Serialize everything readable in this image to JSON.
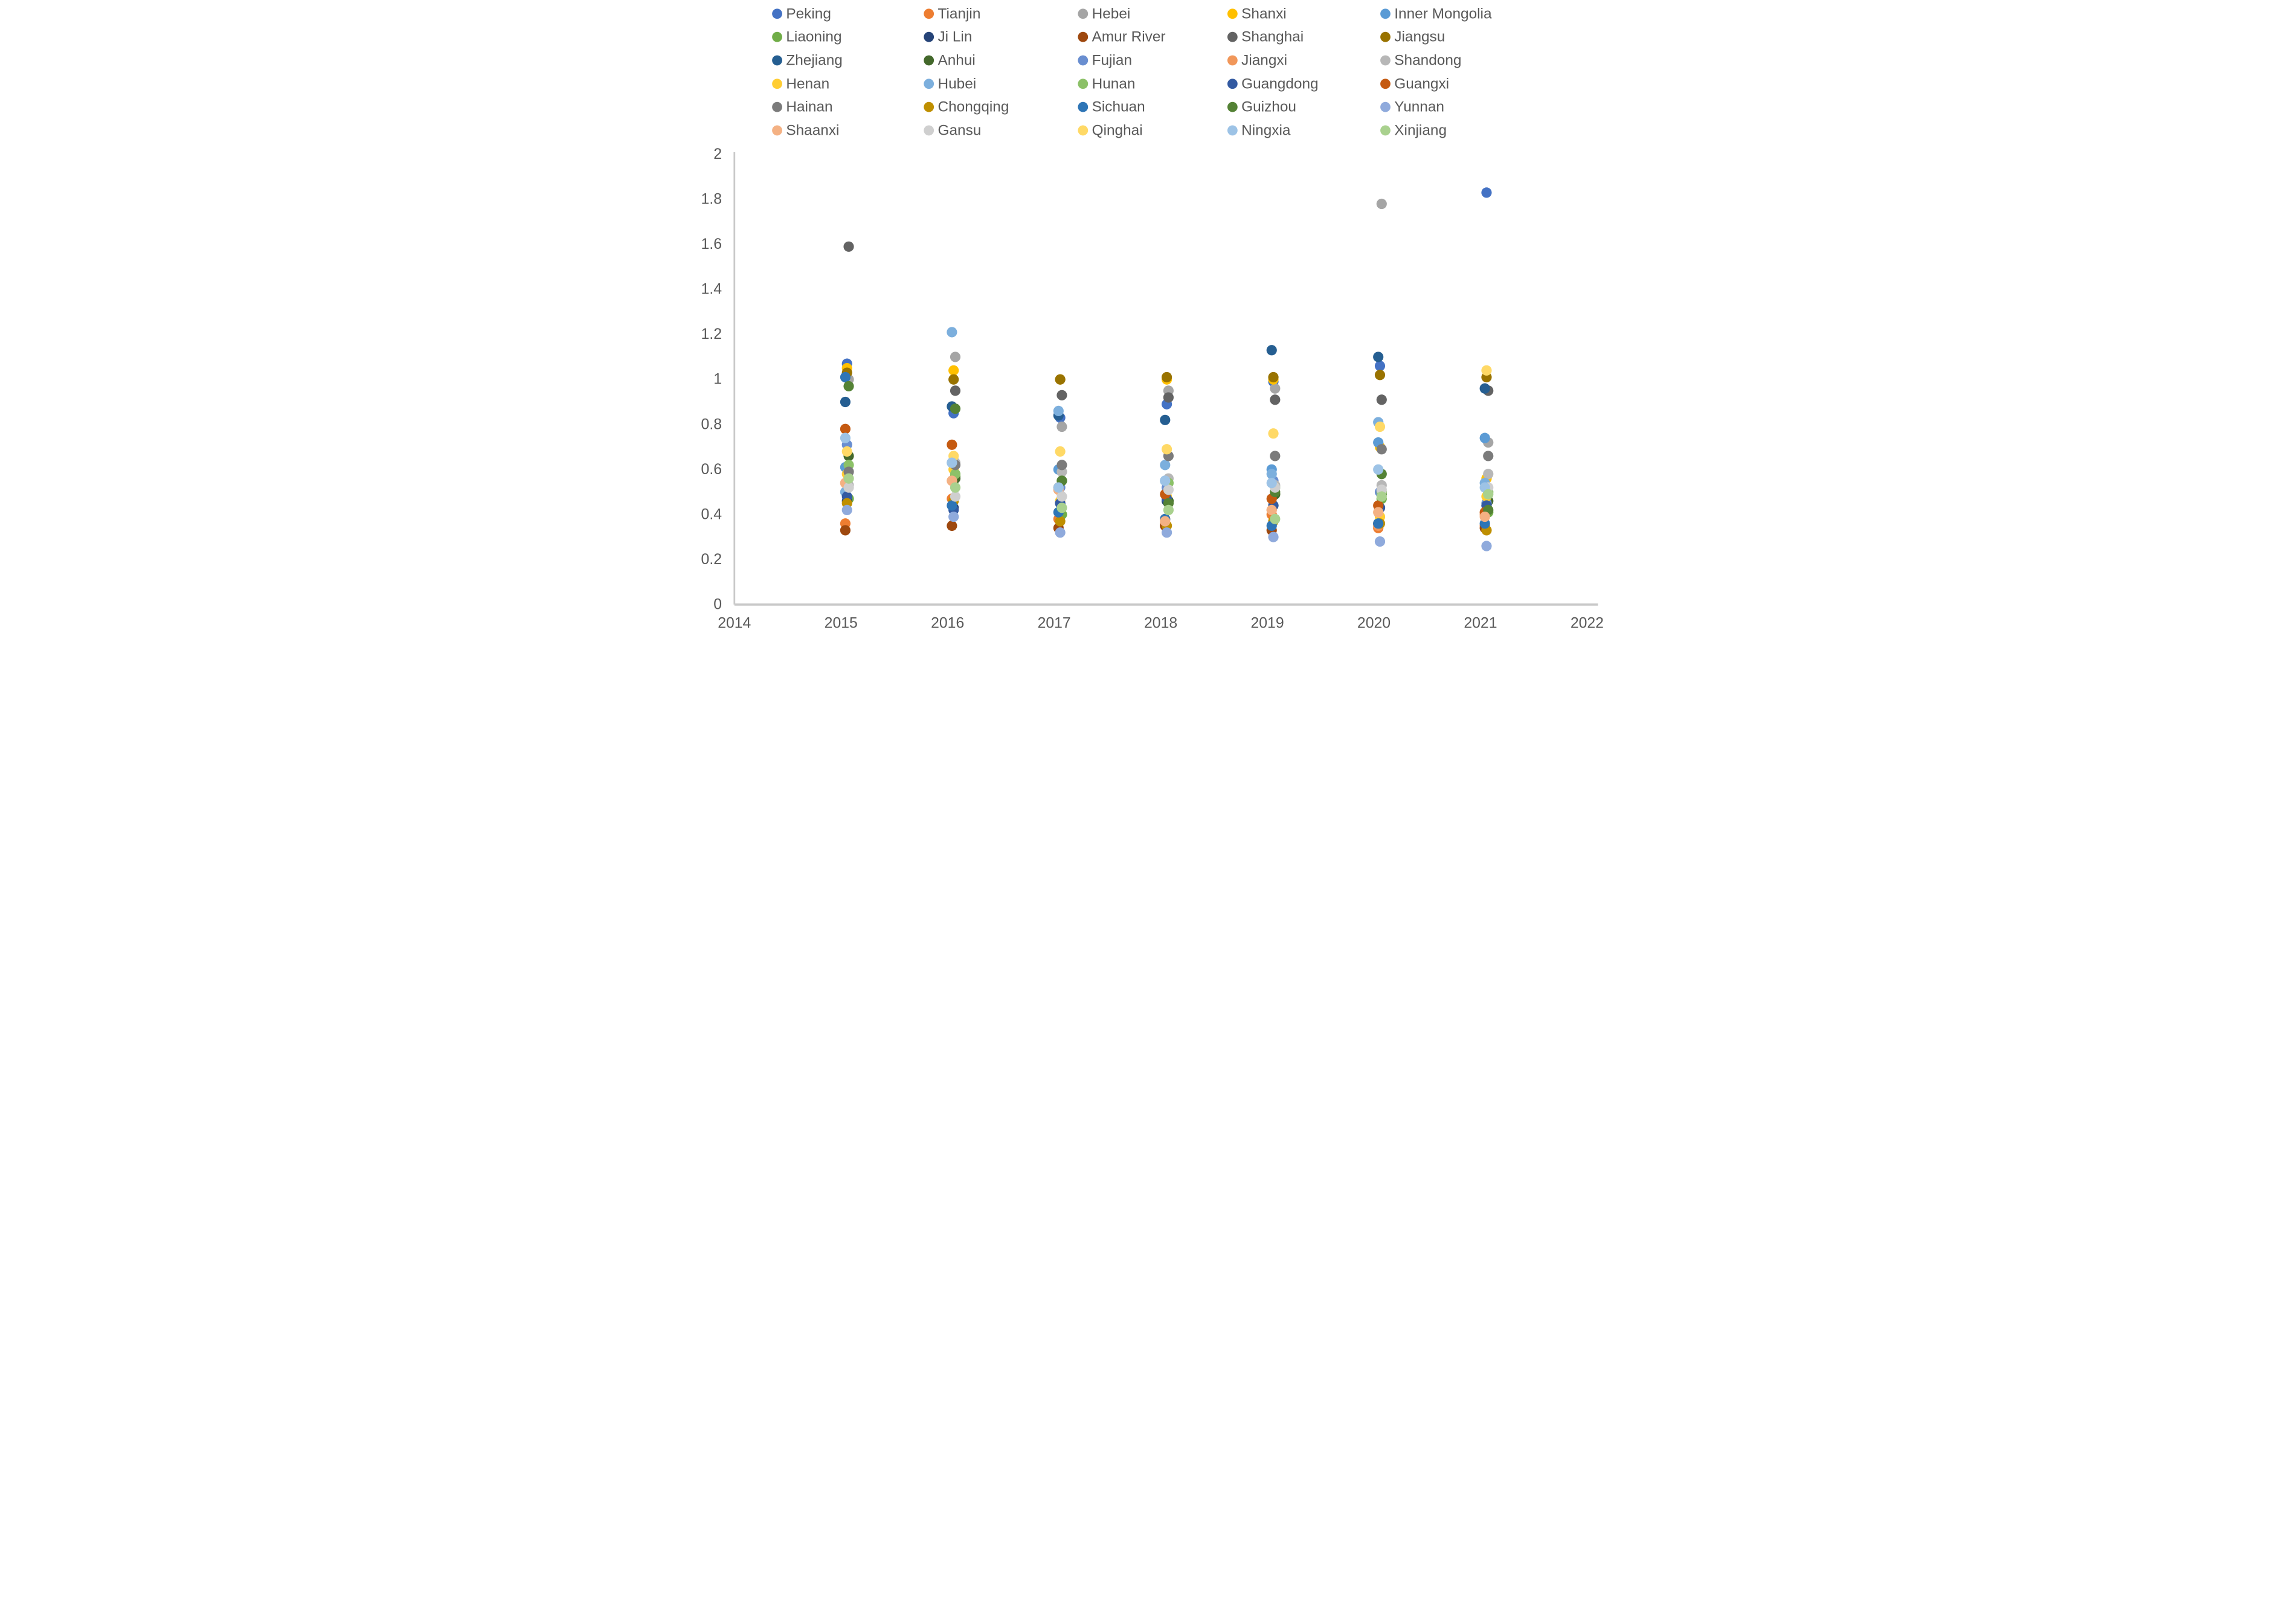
{
  "text_color": "#595959",
  "axis_color": "#C9C9C9",
  "background_color": "#FFFFFF",
  "chart_data": {
    "type": "scatter",
    "title": "",
    "xlabel": "",
    "ylabel": "",
    "xlim": [
      2014,
      2022
    ],
    "ylim": [
      0,
      2
    ],
    "grid": false,
    "legend_position": "top",
    "legend_columns": 5,
    "x_tick_labels": [
      "2014",
      "2015",
      "2016",
      "2017",
      "2018",
      "2019",
      "2020",
      "2021",
      "2022"
    ],
    "y_tick_labels": [
      "0",
      "0.2",
      "0.4",
      "0.6",
      "0.8",
      "1",
      "1.2",
      "1.4",
      "1.6",
      "1.8",
      "2"
    ],
    "y_tick_values": [
      0,
      0.2,
      0.4,
      0.6,
      0.8,
      1,
      1.2,
      1.4,
      1.6,
      1.8,
      2
    ],
    "x": [
      2015,
      2016,
      2017,
      2018,
      2019,
      2020,
      2021
    ],
    "series": [
      {
        "name": "Peking",
        "color": "#4472C4",
        "values": [
          1.07,
          0.85,
          0.83,
          0.89,
          0.99,
          1.06,
          1.83
        ]
      },
      {
        "name": "Tianjin",
        "color": "#ED7D31",
        "values": [
          0.36,
          0.47,
          0.38,
          0.36,
          0.4,
          0.34,
          0.35
        ]
      },
      {
        "name": "Hebei",
        "color": "#A5A5A5",
        "values": [
          1.0,
          1.1,
          0.79,
          0.95,
          0.96,
          1.78,
          0.72
        ]
      },
      {
        "name": "Shanxi",
        "color": "#FFC000",
        "values": [
          1.05,
          1.04,
          1.0,
          1.0,
          1.0,
          0.7,
          0.56
        ]
      },
      {
        "name": "Inner Mongolia",
        "color": "#5B9BD5",
        "values": [
          0.61,
          0.63,
          0.6,
          0.55,
          0.6,
          0.72,
          0.74
        ]
      },
      {
        "name": "Liaoning",
        "color": "#70AD47",
        "values": [
          0.47,
          0.57,
          0.4,
          0.46,
          0.49,
          0.47,
          0.41
        ]
      },
      {
        "name": "Ji Lin",
        "color": "#264478",
        "values": [
          0.46,
          0.43,
          0.45,
          0.46,
          0.44,
          0.43,
          0.44
        ]
      },
      {
        "name": "Amur River",
        "color": "#9E480E",
        "values": [
          0.33,
          0.35,
          0.34,
          0.35,
          0.33,
          0.36,
          0.34
        ]
      },
      {
        "name": "Shanghai",
        "color": "#636363",
        "values": [
          1.59,
          0.95,
          0.93,
          0.92,
          0.91,
          0.91,
          0.95
        ]
      },
      {
        "name": "Jiangsu",
        "color": "#997300",
        "values": [
          1.03,
          1.0,
          1.0,
          1.01,
          1.01,
          1.02,
          1.01
        ]
      },
      {
        "name": "Zhejiang",
        "color": "#255E91",
        "values": [
          0.9,
          0.88,
          0.84,
          0.82,
          1.13,
          1.1,
          0.96
        ]
      },
      {
        "name": "Anhui",
        "color": "#43682B",
        "values": [
          0.66,
          0.56,
          0.55,
          0.46,
          0.49,
          0.49,
          0.46
        ]
      },
      {
        "name": "Fujian",
        "color": "#698ED0",
        "values": [
          0.71,
          0.64,
          0.52,
          0.52,
          0.55,
          0.5,
          0.45
        ]
      },
      {
        "name": "Jiangxi",
        "color": "#F1975A",
        "values": [
          0.54,
          0.55,
          0.51,
          0.38,
          0.42,
          0.35,
          0.4
        ]
      },
      {
        "name": "Shandong",
        "color": "#B7B7B7",
        "values": [
          0.53,
          0.63,
          0.59,
          0.56,
          0.53,
          0.53,
          0.58
        ]
      },
      {
        "name": "Henan",
        "color": "#FFCD33",
        "values": [
          0.58,
          0.6,
          0.46,
          0.48,
          0.44,
          0.39,
          0.48
        ]
      },
      {
        "name": "Hubei",
        "color": "#7CAFDD",
        "values": [
          0.5,
          1.21,
          0.86,
          0.62,
          0.58,
          0.81,
          0.54
        ]
      },
      {
        "name": "Hunan",
        "color": "#8CC168",
        "values": [
          0.62,
          0.58,
          0.55,
          0.54,
          0.52,
          0.5,
          0.5
        ]
      },
      {
        "name": "Guangdong",
        "color": "#335AA1",
        "values": [
          0.48,
          0.42,
          0.45,
          0.47,
          0.44,
          0.43,
          0.44
        ]
      },
      {
        "name": "Guangxi",
        "color": "#C55A11",
        "values": [
          0.78,
          0.71,
          0.52,
          0.49,
          0.47,
          0.44,
          0.41
        ]
      },
      {
        "name": "Hainan",
        "color": "#7B7B7B",
        "values": [
          0.59,
          0.62,
          0.62,
          0.66,
          0.66,
          0.69,
          0.66
        ]
      },
      {
        "name": "Chongqing",
        "color": "#BF8F00",
        "values": [
          0.45,
          0.46,
          0.37,
          0.35,
          0.37,
          0.36,
          0.33
        ]
      },
      {
        "name": "Sichuan",
        "color": "#2E75B6",
        "values": [
          1.01,
          0.44,
          0.41,
          0.38,
          0.35,
          0.36,
          0.36
        ]
      },
      {
        "name": "Guizhou",
        "color": "#548235",
        "values": [
          0.97,
          0.87,
          0.55,
          0.45,
          0.5,
          0.58,
          0.42
        ]
      },
      {
        "name": "Yunnan",
        "color": "#8FAADC",
        "values": [
          0.42,
          0.39,
          0.32,
          0.32,
          0.3,
          0.28,
          0.26
        ]
      },
      {
        "name": "Shaanxi",
        "color": "#F4B183",
        "values": [
          0.54,
          0.55,
          0.51,
          0.37,
          0.42,
          0.41,
          0.39
        ]
      },
      {
        "name": "Gansu",
        "color": "#CFCFCF",
        "values": [
          0.52,
          0.48,
          0.48,
          0.51,
          0.52,
          0.51,
          0.52
        ]
      },
      {
        "name": "Qinghai",
        "color": "#FFD966",
        "values": [
          0.68,
          0.66,
          0.68,
          0.69,
          0.76,
          0.79,
          1.04
        ]
      },
      {
        "name": "Ningxia",
        "color": "#9DC3E6",
        "values": [
          0.74,
          0.63,
          0.52,
          0.55,
          0.54,
          0.6,
          0.52
        ]
      },
      {
        "name": "Xinjiang",
        "color": "#A9D18E",
        "values": [
          0.56,
          0.52,
          0.43,
          0.42,
          0.38,
          0.48,
          0.49
        ]
      }
    ]
  }
}
